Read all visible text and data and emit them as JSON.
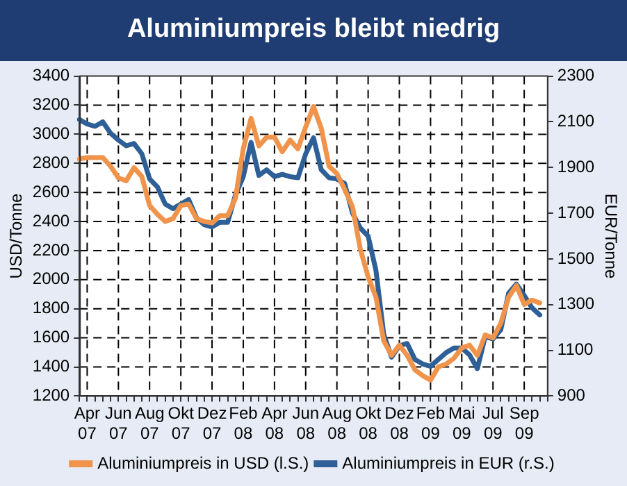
{
  "chart_data": {
    "type": "line",
    "title": "Aluminiumpreis bleibt niedrig",
    "ylabel": "USD/Tonne",
    "y2label": "EUR/Tonne",
    "categories": [
      null,
      "Apr 07",
      null,
      null,
      null,
      "Jun 07",
      null,
      null,
      null,
      "Aug 07",
      null,
      null,
      null,
      "Okt 07",
      null,
      null,
      null,
      "Dez 07",
      null,
      null,
      null,
      "Feb 08",
      null,
      null,
      null,
      "Apr 08",
      null,
      null,
      null,
      "Jun 08",
      null,
      null,
      null,
      "Aug 08",
      null,
      null,
      null,
      "Okt 08",
      null,
      null,
      null,
      "Dez 08",
      null,
      null,
      null,
      "Feb 09",
      null,
      null,
      null,
      "Mai 09",
      null,
      null,
      null,
      "Jul 09",
      null,
      null,
      null,
      "Sep 09",
      null,
      null,
      null
    ],
    "series": [
      {
        "name": "Aluminiumpreis in USD (l.S.)",
        "color": "#f0944b",
        "values": [
          2830,
          2840,
          2840,
          2840,
          2780,
          2700,
          2680,
          2770,
          2710,
          2510,
          2450,
          2400,
          2420,
          2510,
          2520,
          2420,
          2400,
          2390,
          2440,
          2440,
          2560,
          2900,
          3110,
          2920,
          2980,
          2980,
          2880,
          2960,
          2900,
          3050,
          3190,
          3040,
          2780,
          2730,
          2620,
          2500,
          2210,
          2020,
          1880,
          1580,
          1480,
          1550,
          1480,
          1380,
          1340,
          1310,
          1400,
          1420,
          1460,
          1530,
          1550,
          1480,
          1620,
          1600,
          1700,
          1880,
          1960,
          1830,
          1860,
          1840,
          null
        ]
      },
      {
        "name": "Aluminiumpreis in EUR (r.S.)",
        "color": "#2e5f96",
        "axis": "y2",
        "values": [
          2110,
          2090,
          2080,
          2100,
          2050,
          2020,
          1995,
          2005,
          1960,
          1850,
          1815,
          1740,
          1720,
          1740,
          1760,
          1680,
          1650,
          1640,
          1660,
          1660,
          1780,
          1860,
          2010,
          1865,
          1890,
          1860,
          1870,
          1860,
          1855,
          1960,
          2030,
          1890,
          1855,
          1850,
          1830,
          1700,
          1635,
          1600,
          1450,
          1170,
          1070,
          1120,
          1130,
          1060,
          1040,
          1030,
          1060,
          1090,
          1110,
          1110,
          1080,
          1020,
          1160,
          1150,
          1190,
          1350,
          1390,
          1340,
          1286,
          1255,
          null
        ]
      }
    ],
    "ylim": [
      1200,
      3400
    ],
    "yticks": [
      1200,
      1400,
      1600,
      1800,
      2000,
      2200,
      2400,
      2600,
      2800,
      3000,
      3200,
      3400
    ],
    "y2lim": [
      900,
      2300
    ],
    "y2ticks": [
      900,
      1100,
      1300,
      1500,
      1700,
      1900,
      2100,
      2300
    ],
    "grid": true,
    "legend": "bottom",
    "marker": "none",
    "line_style": "solid"
  }
}
